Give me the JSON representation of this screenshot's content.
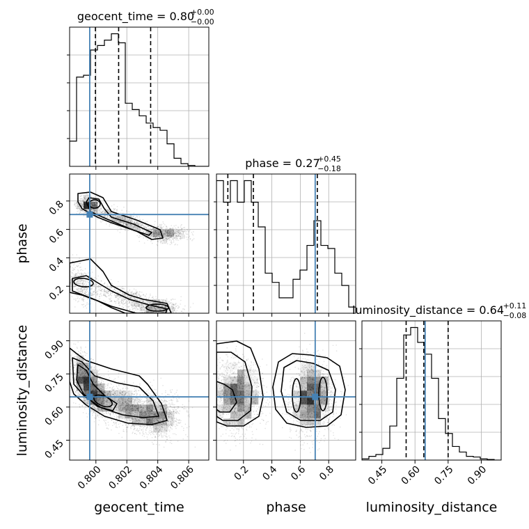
{
  "chart_data": {
    "type": "corner",
    "parameters": [
      "geocent_time",
      "phase",
      "luminosity_distance"
    ],
    "axis_labels": [
      "geocent_time",
      "phase",
      "luminosity_distance"
    ],
    "titles": [
      {
        "name": "geocent_time",
        "text": "geocent_time = 0.80",
        "sup": "+0.00",
        "sub": "−0.00"
      },
      {
        "name": "phase",
        "text": "phase = 0.27",
        "sup": "+0.45",
        "sub": "−0.18"
      },
      {
        "name": "luminosity_distance",
        "text": "luminosity_distance = 0.64",
        "sup": "+0.11",
        "sub": "−0.08"
      }
    ],
    "ranges": [
      [
        0.7983,
        0.8073
      ],
      [
        0.01,
        0.99
      ],
      [
        0.36,
        0.99
      ]
    ],
    "ticks": [
      {
        "values": [
          0.8,
          0.802,
          0.804,
          0.806
        ],
        "labels": [
          "0.800",
          "0.802",
          "0.804",
          "0.806"
        ]
      },
      {
        "values": [
          0.2,
          0.4,
          0.6,
          0.8
        ],
        "labels": [
          "0.2",
          "0.4",
          "0.6",
          "0.8"
        ]
      },
      {
        "values": [
          0.45,
          0.6,
          0.75,
          0.9
        ],
        "labels": [
          "0.45",
          "0.60",
          "0.75",
          "0.90"
        ]
      }
    ],
    "truths": [
      0.7996,
      0.705,
      0.646
    ],
    "quantiles": [
      [
        0.79997,
        0.80147,
        0.80354
      ],
      [
        0.09,
        0.27,
        0.72
      ],
      [
        0.56,
        0.64,
        0.75
      ]
    ],
    "histograms": [
      {
        "parameter": "geocent_time",
        "bins": 20,
        "counts": [
          28,
          99,
          101,
          129,
          134,
          140,
          147,
          137,
          70,
          63,
          56,
          48,
          43,
          40,
          25,
          9,
          3,
          1,
          0,
          0
        ]
      },
      {
        "parameter": "phase",
        "bins": 20,
        "counts": [
          43,
          36,
          43,
          36,
          43,
          36,
          28,
          13,
          10,
          5,
          5,
          11,
          14,
          22,
          30,
          22,
          21,
          13,
          9,
          2
        ]
      },
      {
        "parameter": "luminosity_distance",
        "bins": 20,
        "counts": [
          2,
          6,
          9,
          19,
          55,
          132,
          202,
          214,
          190,
          171,
          132,
          67,
          43,
          22,
          13,
          6,
          5,
          2,
          1,
          0
        ]
      }
    ],
    "grid": true,
    "truth_color": "#4682b4",
    "contour_color": "#000000"
  }
}
